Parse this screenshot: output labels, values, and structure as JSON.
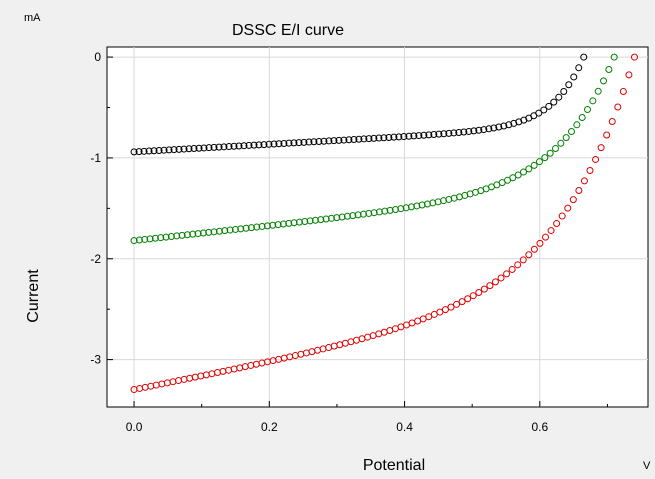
{
  "chart_data": {
    "type": "scatter",
    "title": "DSSC E/I curve",
    "xlabel": "Potential",
    "ylabel": "Current",
    "x_unit": "V",
    "y_unit": "mA",
    "xlim": [
      -0.04,
      0.76
    ],
    "ylim": [
      -3.47,
      0.1
    ],
    "x_ticks": [
      {
        "value": 0.0,
        "label": "0.0"
      },
      {
        "value": 0.2,
        "label": "0.2"
      },
      {
        "value": 0.4,
        "label": "0.4"
      },
      {
        "value": 0.6,
        "label": "0.6"
      }
    ],
    "y_ticks": [
      {
        "value": 0,
        "label": "0"
      },
      {
        "value": -1,
        "label": "-1"
      },
      {
        "value": -2,
        "label": "-2"
      },
      {
        "value": -3,
        "label": "-3"
      }
    ],
    "grid": true,
    "legend": "none",
    "series": [
      {
        "color": "#000000",
        "curve": {
          "isc": -0.94,
          "voc": 0.665,
          "slope": 0.3,
          "kink": 0.62,
          "k": 22
        },
        "x": [
          0.0,
          0.05,
          0.1,
          0.15,
          0.2,
          0.25,
          0.3,
          0.35,
          0.4,
          0.45,
          0.5,
          0.55,
          0.58,
          0.6,
          0.62,
          0.64,
          0.655,
          0.665
        ],
        "y": [
          -0.94,
          -0.93,
          -0.92,
          -0.9,
          -0.88,
          -0.86,
          -0.84,
          -0.81,
          -0.78,
          -0.73,
          -0.67,
          -0.57,
          -0.48,
          -0.39,
          -0.28,
          -0.15,
          -0.05,
          0.02
        ]
      },
      {
        "color": "#008000",
        "curve": {
          "isc": -1.82,
          "voc": 0.71,
          "slope": 0.6,
          "kink": 0.695,
          "k": 12
        },
        "x": [
          0.0,
          0.05,
          0.1,
          0.15,
          0.2,
          0.25,
          0.3,
          0.35,
          0.4,
          0.45,
          0.5,
          0.55,
          0.6,
          0.63,
          0.66,
          0.68,
          0.7,
          0.71
        ],
        "y": [
          -1.82,
          -1.8,
          -1.77,
          -1.74,
          -1.71,
          -1.68,
          -1.65,
          -1.62,
          -1.57,
          -1.52,
          -1.44,
          -1.3,
          -1.05,
          -0.82,
          -0.52,
          -0.32,
          -0.1,
          0.02
        ]
      },
      {
        "color": "#e00000",
        "curve": {
          "isc": -3.3,
          "voc": 0.74,
          "slope": 0.95,
          "kink": 0.765,
          "k": 9
        },
        "x": [
          0.0,
          0.05,
          0.1,
          0.15,
          0.2,
          0.25,
          0.3,
          0.35,
          0.4,
          0.45,
          0.5,
          0.55,
          0.6,
          0.63,
          0.66,
          0.69,
          0.72,
          0.74
        ],
        "y": [
          -3.3,
          -3.27,
          -3.23,
          -3.19,
          -3.15,
          -3.1,
          -3.05,
          -2.99,
          -2.91,
          -2.81,
          -2.65,
          -2.4,
          -1.95,
          -1.6,
          -1.15,
          -0.7,
          -0.25,
          0.02
        ]
      }
    ]
  }
}
